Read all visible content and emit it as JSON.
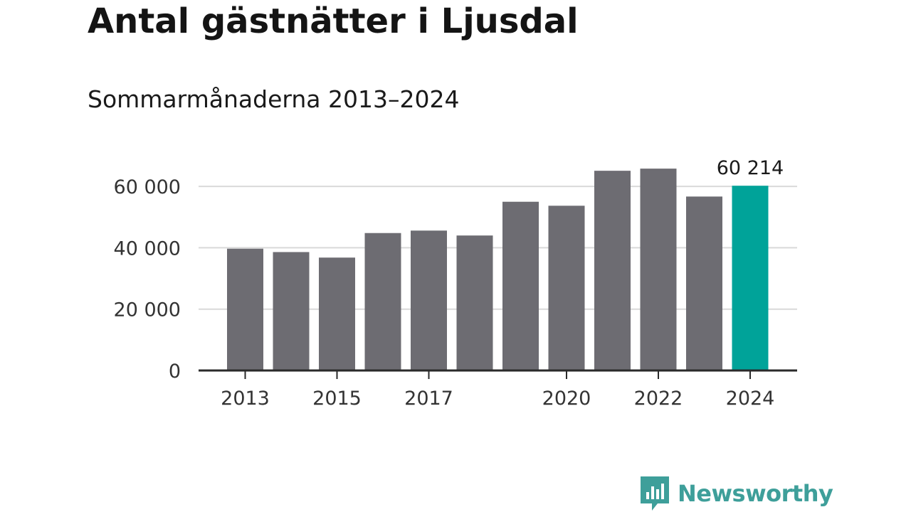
{
  "title": "Antal gästnätter i Ljusdal",
  "subtitle": "Sommarmånaderna 2013–2024",
  "brand": "Newsworthy",
  "colors": {
    "bar": "#6d6c72",
    "highlight": "#00a399",
    "grid": "#d9d9d9",
    "axis": "#2a2a2a",
    "brand": "#3e9f9a"
  },
  "chart_data": {
    "type": "bar",
    "categories": [
      "2013",
      "2014",
      "2015",
      "2016",
      "2017",
      "2018",
      "2019",
      "2020",
      "2021",
      "2022",
      "2023",
      "2024"
    ],
    "values": [
      39700,
      38600,
      36800,
      44800,
      45600,
      44000,
      55000,
      53700,
      65100,
      65800,
      56700,
      60214
    ],
    "highlight_index": 11,
    "data_labels": [
      {
        "index": 11,
        "text": "60 214"
      }
    ],
    "x_tick_labels": [
      {
        "index": 0,
        "text": "2013"
      },
      {
        "index": 2,
        "text": "2015"
      },
      {
        "index": 4,
        "text": "2017"
      },
      {
        "index": 7,
        "text": "2020"
      },
      {
        "index": 9,
        "text": "2022"
      },
      {
        "index": 11,
        "text": "2024"
      }
    ],
    "y_ticks": [
      {
        "value": 0,
        "text": "0"
      },
      {
        "value": 20000,
        "text": "20 000"
      },
      {
        "value": 40000,
        "text": "40 000"
      },
      {
        "value": 60000,
        "text": "60 000"
      }
    ],
    "ylim": [
      0,
      70000
    ],
    "xlabel": "",
    "ylabel": "",
    "grid": true
  }
}
